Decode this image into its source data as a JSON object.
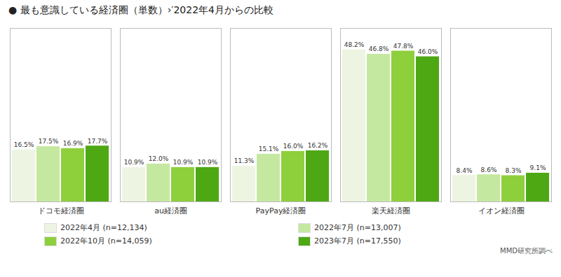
{
  "chart_data": {
    "type": "bar",
    "title": "● 最も意識している経済圈（単数）›′2022年4月からの比較",
    "categories": [
      "ドコモ経済圈",
      "au経済圈",
      "PayPay経済圈",
      "楽天経済圈",
      "イオン経済圈"
    ],
    "series": [
      {
        "name": "2022年4月  (n=12,134)",
        "color": "#edf5e2",
        "values": [
          16.5,
          10.9,
          11.3,
          48.2,
          8.4
        ],
        "value_labels": [
          "16.5%",
          "10.9%",
          "11.3%",
          "48.2%",
          "8.4%"
        ]
      },
      {
        "name": "2022年7月  (n=13,007)",
        "color": "#c5e8a0",
        "values": [
          17.5,
          12.0,
          15.1,
          46.8,
          8.6
        ],
        "value_labels": [
          "17.5%",
          "12.0%",
          "15.1%",
          "46.8%",
          "8.6%"
        ]
      },
      {
        "name": "2022年10月  (n=14,059)",
        "color": "#8ecf3c",
        "values": [
          16.9,
          10.9,
          16.0,
          47.8,
          8.3
        ],
        "value_labels": [
          "16.9%",
          "10.9%",
          "16.0%",
          "47.8%",
          "8.3%"
        ]
      },
      {
        "name": "2023年7月  (n=17,550)",
        "color": "#4ea814",
        "values": [
          17.7,
          10.9,
          16.2,
          46.0,
          9.1
        ],
        "value_labels": [
          "17.7%",
          "10.9%",
          "16.2%",
          "46.0%",
          "9.1%"
        ]
      }
    ],
    "ylim": [
      0,
      55
    ],
    "grid": false,
    "tick_labels": "x",
    "data_labels": true,
    "legend": "bottom",
    "annotations": [
      "MMD研究所調べ"
    ]
  }
}
